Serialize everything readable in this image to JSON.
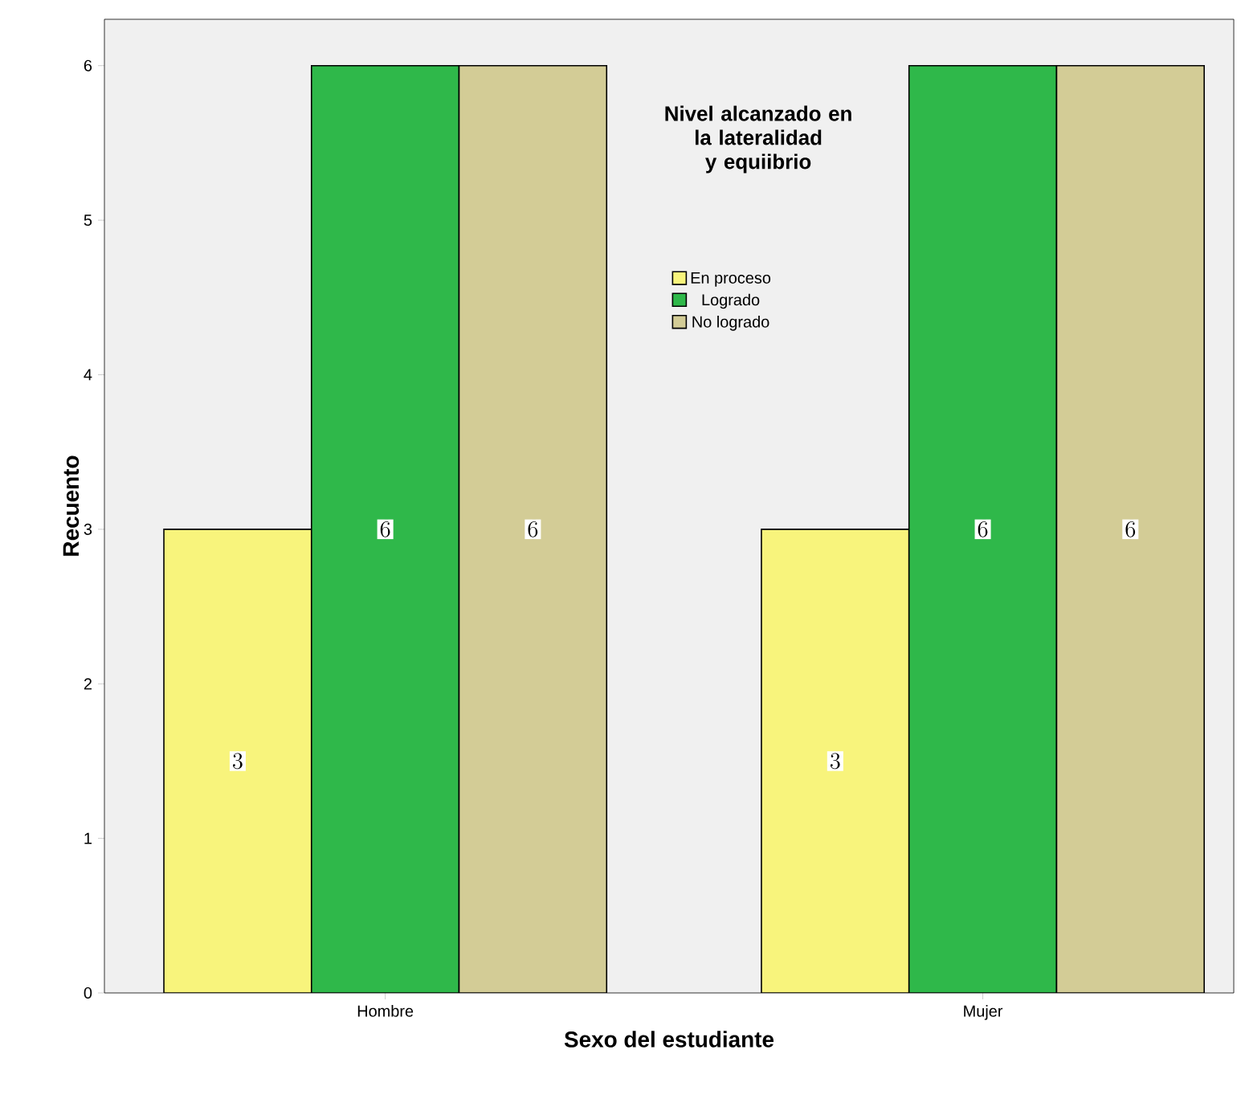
{
  "chart_data": {
    "type": "bar",
    "xlabel": "Sexo del estudiante",
    "ylabel": "Recuento",
    "legend_title": "Nivel alcanzado en la lateralidad y equiibrio",
    "categories": [
      "Hombre",
      "Mujer"
    ],
    "series": [
      {
        "name": "En proceso",
        "color": "#f8f47c",
        "values": [
          3,
          3
        ]
      },
      {
        "name": "Logrado",
        "color": "#2fb84a",
        "values": [
          6,
          6
        ]
      },
      {
        "name": "No logrado",
        "color": "#d3cc96",
        "values": [
          6,
          6
        ]
      }
    ],
    "ylim": [
      0,
      6.3
    ],
    "yticks": [
      0,
      1,
      2,
      3,
      4,
      5,
      6
    ],
    "data_labels": true,
    "legend": "top"
  }
}
